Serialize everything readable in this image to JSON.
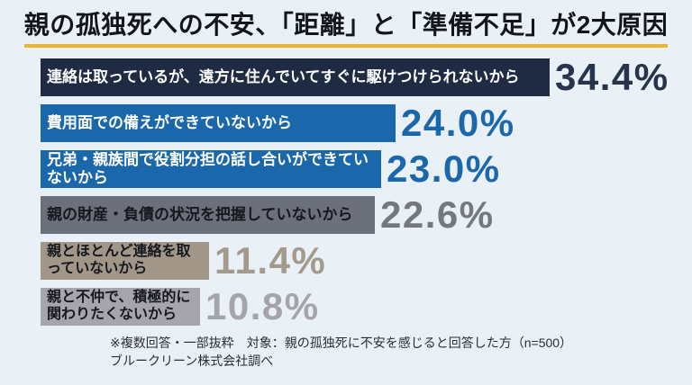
{
  "title": "親の孤独死への不安、「距離」と「準備不足」が2大原因",
  "colors": {
    "background": "#e9f1f6",
    "title_text": "#13151a",
    "title_underline": "#efb32a"
  },
  "chart_data": {
    "type": "bar",
    "orientation": "horizontal",
    "title": "親の孤独死への不安、「距離」と「準備不足」が2大原因",
    "categories": [
      "連絡は取っているが、遠方に住んでいてすぐに駆けつけられないから",
      "費用面での備えができていないから",
      "兄弟・親族間で役割分担の話し合いができてい\nないから",
      "親の財産・負債の状況を把握していないから",
      "親とほとんど連絡を取\nっていないから",
      "親と不仲で、積極的に\n関わりたくないから"
    ],
    "values": [
      34.4,
      24.0,
      23.0,
      22.6,
      11.4,
      10.8
    ],
    "value_labels": [
      "34.4%",
      "24.0%",
      "23.0%",
      "22.6%",
      "11.4%",
      "10.8%"
    ],
    "bar_colors": [
      "#1e2b43",
      "#1b67ab",
      "#1b67ab",
      "#6c707a",
      "#a29689",
      "#a6a5ab"
    ],
    "bar_label_colors": [
      "#ffffff",
      "#ffffff",
      "#ffffff",
      "#15181e",
      "#15181e",
      "#15181e"
    ],
    "value_label_colors": [
      "#27344c",
      "#1b67ab",
      "#1b67ab",
      "#757880",
      "#a39a8c",
      "#a5a4aa"
    ],
    "xlim": [
      0,
      36
    ],
    "grid": false,
    "legend": false,
    "annotations": [
      "※複数回答・一部抜粋　対象：親の孤独死に不安を感じると回答した方（n=500）",
      "ブルークリーン株式会社調べ"
    ]
  },
  "footer": {
    "note": "※複数回答・一部抜粋　対象：親の孤独死に不安を感じると回答した方（n=500）",
    "source": "ブルークリーン株式会社調べ"
  }
}
